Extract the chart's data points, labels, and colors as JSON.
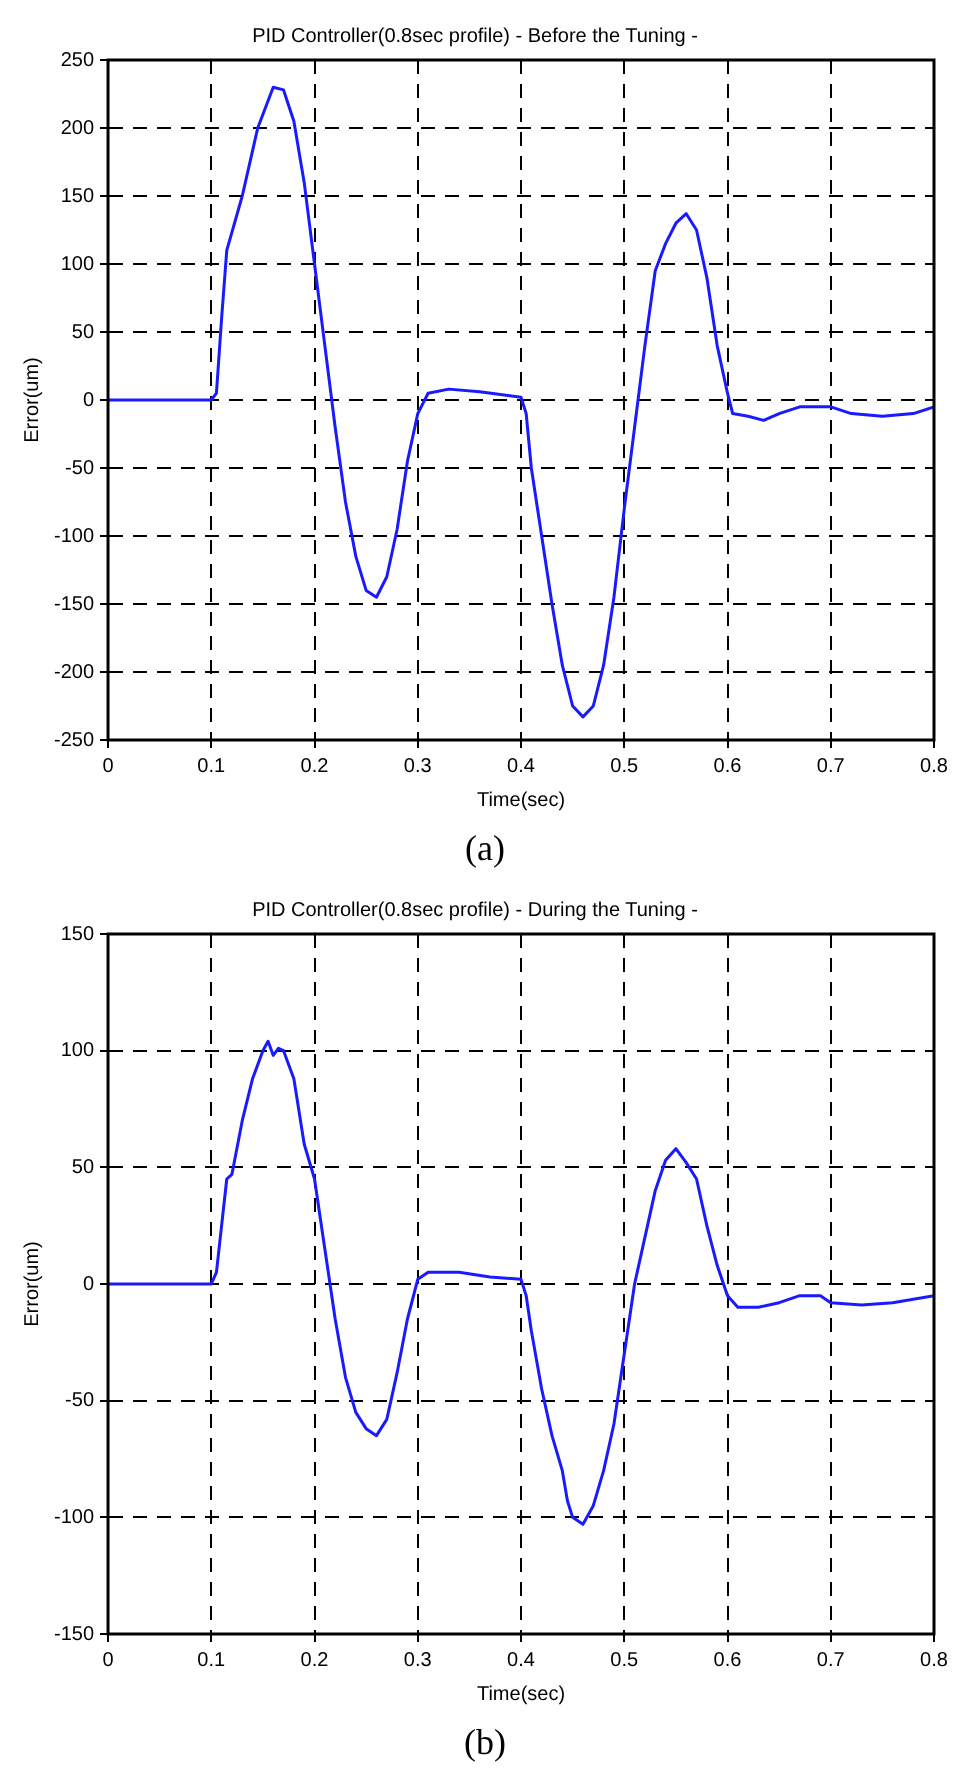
{
  "chart_data": [
    {
      "type": "line",
      "title": "PID Controller(0.8sec profile) - Before the Tuning -",
      "xlabel": "Time(sec)",
      "ylabel": "Error(um)",
      "annotations": [
        "(a)"
      ],
      "x": [
        0,
        0.02,
        0.04,
        0.06,
        0.08,
        0.1,
        0.105,
        0.11,
        0.115,
        0.13,
        0.145,
        0.16,
        0.17,
        0.18,
        0.19,
        0.2,
        0.21,
        0.22,
        0.23,
        0.24,
        0.25,
        0.26,
        0.27,
        0.28,
        0.29,
        0.3,
        0.31,
        0.33,
        0.36,
        0.38,
        0.4,
        0.405,
        0.41,
        0.42,
        0.43,
        0.44,
        0.45,
        0.46,
        0.47,
        0.48,
        0.49,
        0.5,
        0.51,
        0.52,
        0.53,
        0.54,
        0.55,
        0.56,
        0.57,
        0.58,
        0.59,
        0.6,
        0.605,
        0.62,
        0.635,
        0.65,
        0.67,
        0.7,
        0.72,
        0.75,
        0.78,
        0.8
      ],
      "series": [
        {
          "color": "#1a1aff",
          "values": [
            0,
            0,
            0,
            0,
            0,
            0,
            5,
            60,
            110,
            150,
            200,
            230,
            228,
            205,
            160,
            100,
            40,
            -20,
            -75,
            -115,
            -140,
            -145,
            -130,
            -95,
            -45,
            -10,
            5,
            8,
            6,
            4,
            2,
            -10,
            -50,
            -100,
            -150,
            -195,
            -225,
            -233,
            -225,
            -195,
            -145,
            -80,
            -20,
            40,
            95,
            115,
            130,
            137,
            125,
            90,
            40,
            5,
            -10,
            -12,
            -15,
            -10,
            -5,
            -5,
            -10,
            -12,
            -10,
            -5
          ]
        }
      ],
      "xlim": [
        0,
        0.8
      ],
      "xticks": [
        0,
        0.1,
        0.2,
        0.3,
        0.4,
        0.5,
        0.6,
        0.7,
        0.8
      ],
      "ylim": [
        -250,
        250
      ],
      "yticks": [
        -250,
        -200,
        -150,
        -100,
        -50,
        0,
        50,
        100,
        150,
        200,
        250
      ],
      "grid": true,
      "line_style": "solid"
    },
    {
      "type": "line",
      "title": "PID Controller(0.8sec profile) - During the Tuning -",
      "xlabel": "Time(sec)",
      "ylabel": "Error(um)",
      "annotations": [
        "(b)"
      ],
      "x": [
        0,
        0.02,
        0.04,
        0.06,
        0.08,
        0.1,
        0.105,
        0.11,
        0.115,
        0.12,
        0.13,
        0.14,
        0.15,
        0.155,
        0.16,
        0.165,
        0.17,
        0.18,
        0.19,
        0.2,
        0.21,
        0.22,
        0.23,
        0.24,
        0.25,
        0.26,
        0.27,
        0.28,
        0.29,
        0.3,
        0.31,
        0.34,
        0.37,
        0.4,
        0.405,
        0.41,
        0.42,
        0.43,
        0.44,
        0.445,
        0.45,
        0.46,
        0.47,
        0.48,
        0.49,
        0.5,
        0.51,
        0.52,
        0.53,
        0.54,
        0.55,
        0.56,
        0.57,
        0.58,
        0.59,
        0.6,
        0.61,
        0.63,
        0.65,
        0.67,
        0.69,
        0.7,
        0.73,
        0.76,
        0.8
      ],
      "series": [
        {
          "color": "#1a1aff",
          "values": [
            0,
            0,
            0,
            0,
            0,
            0,
            5,
            25,
            45,
            47,
            70,
            88,
            100,
            104,
            98,
            101,
            100,
            88,
            60,
            45,
            15,
            -15,
            -40,
            -55,
            -62,
            -65,
            -58,
            -38,
            -15,
            2,
            5,
            5,
            3,
            2,
            -5,
            -20,
            -45,
            -65,
            -80,
            -93,
            -100,
            -103,
            -95,
            -80,
            -60,
            -30,
            0,
            20,
            40,
            53,
            58,
            52,
            45,
            25,
            8,
            -5,
            -10,
            -10,
            -8,
            -5,
            -5,
            -8,
            -9,
            -8,
            -5
          ]
        }
      ],
      "xlim": [
        0,
        0.8
      ],
      "xticks": [
        0,
        0.1,
        0.2,
        0.3,
        0.4,
        0.5,
        0.6,
        0.7,
        0.8
      ],
      "ylim": [
        -150,
        150
      ],
      "yticks": [
        -150,
        -100,
        -50,
        0,
        50,
        100,
        150
      ],
      "grid": true,
      "line_style": "solid"
    }
  ]
}
